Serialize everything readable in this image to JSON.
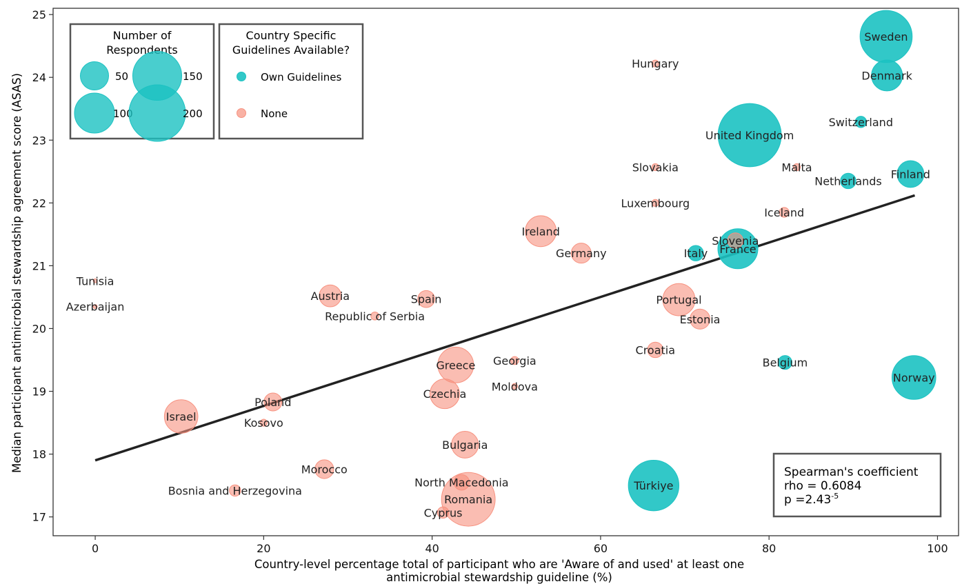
{
  "chart_data": {
    "type": "scatter",
    "xlabel_lines": [
      "Country-level percentage total of participant who are 'Aware of and used' at least one",
      "antimicrobial stewardship guideline (%)"
    ],
    "ylabel": "Median participant antimicrobial stewardship agreement score (ASAS)",
    "xlim": [
      -5,
      102.5
    ],
    "ylim": [
      16.7,
      25.1
    ],
    "xticks": [
      0,
      20,
      40,
      60,
      80,
      100
    ],
    "yticks": [
      17,
      18,
      19,
      20,
      21,
      22,
      23,
      24,
      25
    ],
    "grid": false,
    "colors": {
      "own": "#1cc2c2",
      "none": "#f7917f",
      "trend": "#222222"
    },
    "points": [
      {
        "label": "Sweden",
        "x": 93.9,
        "y": 24.65,
        "n": 170,
        "group": "own"
      },
      {
        "label": "Denmark",
        "x": 94.0,
        "y": 24.03,
        "n": 60,
        "group": "own"
      },
      {
        "label": "United Kingdom",
        "x": 77.7,
        "y": 23.08,
        "n": 250,
        "group": "own"
      },
      {
        "label": "Switzerland",
        "x": 90.9,
        "y": 23.29,
        "n": 8,
        "group": "own"
      },
      {
        "label": "Finland",
        "x": 96.8,
        "y": 22.46,
        "n": 45,
        "group": "own"
      },
      {
        "label": "Netherlands",
        "x": 89.4,
        "y": 22.35,
        "n": 15,
        "group": "own"
      },
      {
        "label": "Italy",
        "x": 71.3,
        "y": 21.2,
        "n": 15,
        "group": "own"
      },
      {
        "label": "France",
        "x": 76.3,
        "y": 21.27,
        "n": 100,
        "group": "own"
      },
      {
        "label": "Belgium",
        "x": 81.9,
        "y": 19.46,
        "n": 12,
        "group": "own"
      },
      {
        "label": "Norway",
        "x": 97.2,
        "y": 19.22,
        "n": 120,
        "group": "own"
      },
      {
        "label": "Türkiye",
        "x": 66.3,
        "y": 17.5,
        "n": 160,
        "group": "own"
      },
      {
        "label": "Hungary",
        "x": 66.5,
        "y": 24.22,
        "n": 3,
        "group": "none"
      },
      {
        "label": "Slovakia",
        "x": 66.5,
        "y": 22.57,
        "n": 3,
        "group": "none"
      },
      {
        "label": "Malta",
        "x": 83.3,
        "y": 22.57,
        "n": 3,
        "group": "none"
      },
      {
        "label": "Luxembourg",
        "x": 66.5,
        "y": 22.0,
        "n": 3,
        "group": "none"
      },
      {
        "label": "Iceland",
        "x": 81.8,
        "y": 21.85,
        "n": 6,
        "group": "none"
      },
      {
        "label": "Ireland",
        "x": 52.9,
        "y": 21.55,
        "n": 60,
        "group": "none"
      },
      {
        "label": "Slovenia",
        "x": 76.0,
        "y": 21.4,
        "n": 15,
        "group": "none"
      },
      {
        "label": "Germany",
        "x": 57.7,
        "y": 21.2,
        "n": 25,
        "group": "none"
      },
      {
        "label": "Tunisia",
        "x": 0.0,
        "y": 20.76,
        "n": 1,
        "group": "none"
      },
      {
        "label": "Azerbaijan",
        "x": 0.0,
        "y": 20.35,
        "n": 1,
        "group": "none"
      },
      {
        "label": "Austria",
        "x": 27.9,
        "y": 20.52,
        "n": 30,
        "group": "none"
      },
      {
        "label": "Spain",
        "x": 39.3,
        "y": 20.47,
        "n": 18,
        "group": "none"
      },
      {
        "label": "Republic of Serbia",
        "x": 33.2,
        "y": 20.2,
        "n": 4,
        "group": "none"
      },
      {
        "label": "Portugal",
        "x": 69.3,
        "y": 20.46,
        "n": 65,
        "group": "none"
      },
      {
        "label": "Estonia",
        "x": 71.8,
        "y": 20.15,
        "n": 25,
        "group": "none"
      },
      {
        "label": "Croatia",
        "x": 66.5,
        "y": 19.66,
        "n": 15,
        "group": "none"
      },
      {
        "label": "Georgia",
        "x": 49.8,
        "y": 19.49,
        "n": 4,
        "group": "none"
      },
      {
        "label": "Greece",
        "x": 42.8,
        "y": 19.42,
        "n": 80,
        "group": "none"
      },
      {
        "label": "Moldova",
        "x": 49.8,
        "y": 19.08,
        "n": 2,
        "group": "none"
      },
      {
        "label": "Czechia",
        "x": 41.5,
        "y": 18.96,
        "n": 55,
        "group": "none"
      },
      {
        "label": "Poland",
        "x": 21.1,
        "y": 18.83,
        "n": 20,
        "group": "none"
      },
      {
        "label": "Israel",
        "x": 10.2,
        "y": 18.6,
        "n": 70,
        "group": "none"
      },
      {
        "label": "Kosovo",
        "x": 20.0,
        "y": 18.5,
        "n": 3,
        "group": "none"
      },
      {
        "label": "Bulgaria",
        "x": 43.9,
        "y": 18.15,
        "n": 45,
        "group": "none"
      },
      {
        "label": "Morocco",
        "x": 27.2,
        "y": 17.76,
        "n": 22,
        "group": "none"
      },
      {
        "label": "North Macedonia",
        "x": 43.5,
        "y": 17.55,
        "n": 15,
        "group": "none"
      },
      {
        "label": "Bosnia and Herzegovina",
        "x": 16.6,
        "y": 17.42,
        "n": 8,
        "group": "none"
      },
      {
        "label": "Romania",
        "x": 44.3,
        "y": 17.28,
        "n": 180,
        "group": "none"
      },
      {
        "label": "Cyprus",
        "x": 41.3,
        "y": 17.07,
        "n": 8,
        "group": "none"
      }
    ],
    "trend": {
      "x": [
        0,
        97.3
      ],
      "y": [
        17.9,
        22.12
      ]
    },
    "size_legend": {
      "title_lines": [
        "Number of",
        "Respondents"
      ],
      "entries": [
        {
          "label": "50",
          "n": 50
        },
        {
          "label": "150",
          "n": 150
        },
        {
          "label": "100",
          "n": 100
        },
        {
          "label": "200",
          "n": 200
        }
      ]
    },
    "color_legend": {
      "title_lines": [
        "Country Specific",
        "Guidelines Available?"
      ],
      "entries": [
        {
          "label": "Own Guidelines",
          "group": "own"
        },
        {
          "label": "None",
          "group": "none"
        }
      ]
    },
    "stats_box": {
      "title": "Spearman's coefficient",
      "rho": "rho = 0.6084",
      "p_base": "p =2.43",
      "p_exp": "-5"
    }
  }
}
